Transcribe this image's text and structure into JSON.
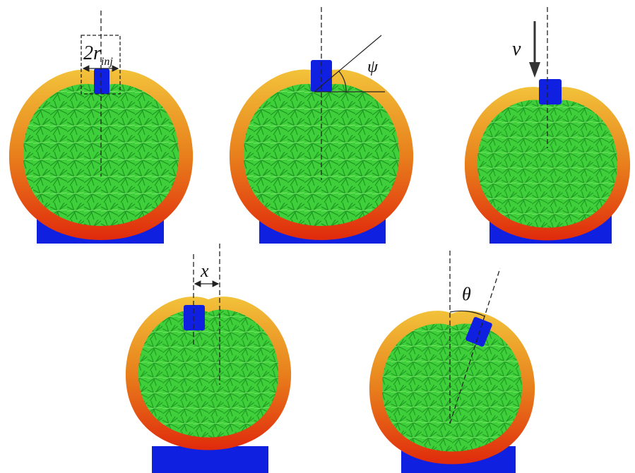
{
  "labels": {
    "injector_diameter": {
      "main": "2r",
      "sub": "inj"
    },
    "angle_psi": "ψ",
    "velocity": "v",
    "offset": "x",
    "angle_theta": "θ"
  }
}
